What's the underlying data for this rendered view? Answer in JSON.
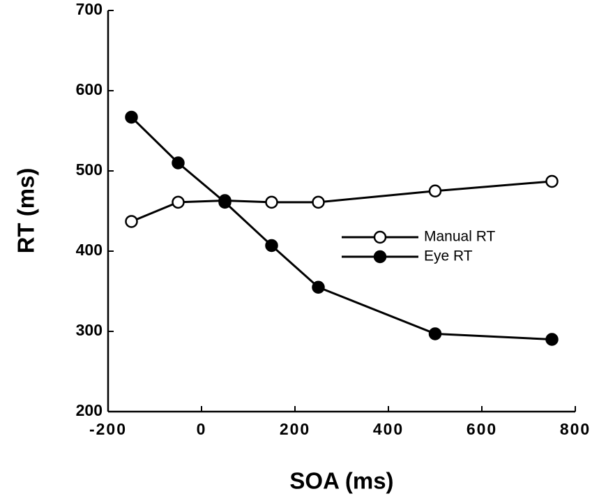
{
  "chart_data": {
    "type": "line",
    "xlabel": "SOA (ms)",
    "ylabel": "RT (ms)",
    "xlim": [
      -200,
      800
    ],
    "xticks": [
      -200,
      0,
      200,
      400,
      600,
      800
    ],
    "ylim": [
      200,
      700
    ],
    "yticks": [
      200,
      300,
      400,
      500,
      600,
      700
    ],
    "grid": false,
    "legend": "center right",
    "series": [
      {
        "name": "Manual RT",
        "color": "#000000",
        "markerfacecolor": "#ffffff",
        "x": [
          -150,
          -50,
          50,
          150,
          250,
          500,
          750
        ],
        "values": [
          437,
          461,
          463,
          461,
          461,
          475,
          487
        ]
      },
      {
        "name": "Eye RT",
        "color": "#000000",
        "markerfacecolor": "#000000",
        "x": [
          -150,
          -50,
          50,
          150,
          250,
          500,
          750
        ],
        "values": [
          567,
          510,
          461,
          407,
          355,
          297,
          290
        ]
      }
    ]
  }
}
